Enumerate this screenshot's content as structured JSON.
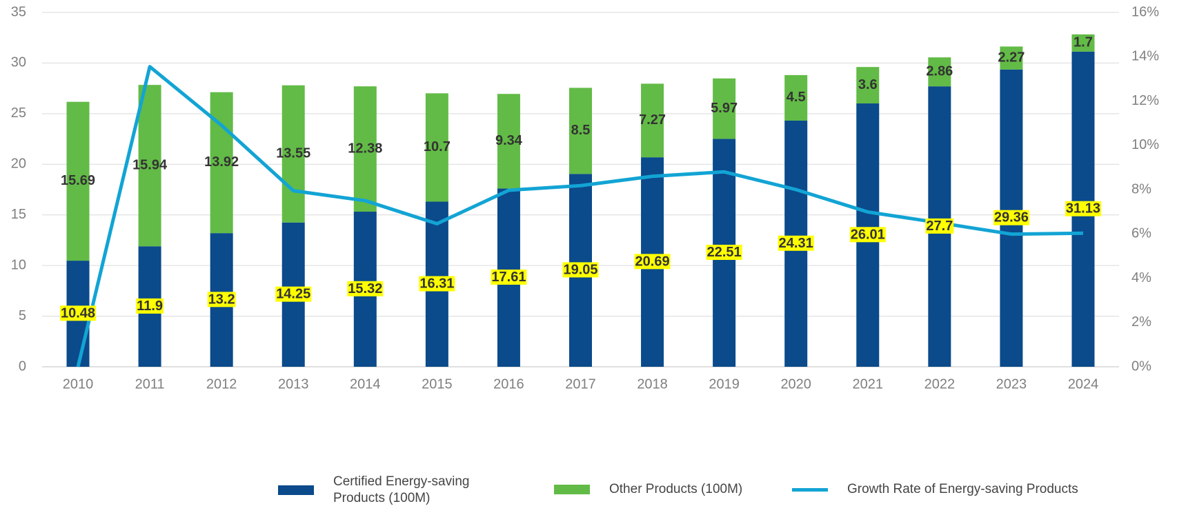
{
  "chart_data": {
    "type": "bar-line",
    "categories": [
      "2010",
      "2011",
      "2012",
      "2013",
      "2014",
      "2015",
      "2016",
      "2017",
      "2018",
      "2019",
      "2020",
      "2021",
      "2022",
      "2023",
      "2024"
    ],
    "series": [
      {
        "name": "Certified Energy-saving Products (100M)",
        "type": "bar",
        "color": "#0b4a8b",
        "values": [
          10.48,
          11.9,
          13.2,
          14.25,
          15.32,
          16.31,
          17.61,
          19.05,
          20.69,
          22.51,
          24.31,
          26.01,
          27.7,
          29.36,
          31.13
        ]
      },
      {
        "name": "Other Products (100M)",
        "type": "bar",
        "color": "#62bb46",
        "values": [
          15.69,
          15.94,
          13.92,
          13.55,
          12.38,
          10.7,
          9.34,
          8.5,
          7.27,
          5.97,
          4.5,
          3.6,
          2.86,
          2.27,
          1.7
        ]
      },
      {
        "name": "Growth Rate of Energy-saving Products",
        "type": "line",
        "color": "#12a4d4",
        "axis": "y2",
        "values": [
          0,
          13.55,
          10.9,
          7.95,
          7.5,
          6.46,
          7.97,
          8.18,
          8.6,
          8.8,
          8.0,
          6.99,
          6.5,
          5.99,
          6.03
        ]
      }
    ],
    "ylim": [
      0,
      35
    ],
    "yticks": [
      0,
      5,
      10,
      15,
      20,
      25,
      30,
      35
    ],
    "y2lim": [
      0,
      16
    ],
    "y2ticks": [
      {
        "value": 0,
        "label": "0%"
      },
      {
        "value": 2,
        "label": "2%"
      },
      {
        "value": 4,
        "label": "4%"
      },
      {
        "value": 6,
        "label": "6%"
      },
      {
        "value": 8,
        "label": "8%"
      },
      {
        "value": 10,
        "label": "10%"
      },
      {
        "value": 12,
        "label": "12%"
      },
      {
        "value": 14,
        "label": "14%"
      },
      {
        "value": 16,
        "label": "16%"
      }
    ],
    "grid": true,
    "legend": "bottom"
  }
}
